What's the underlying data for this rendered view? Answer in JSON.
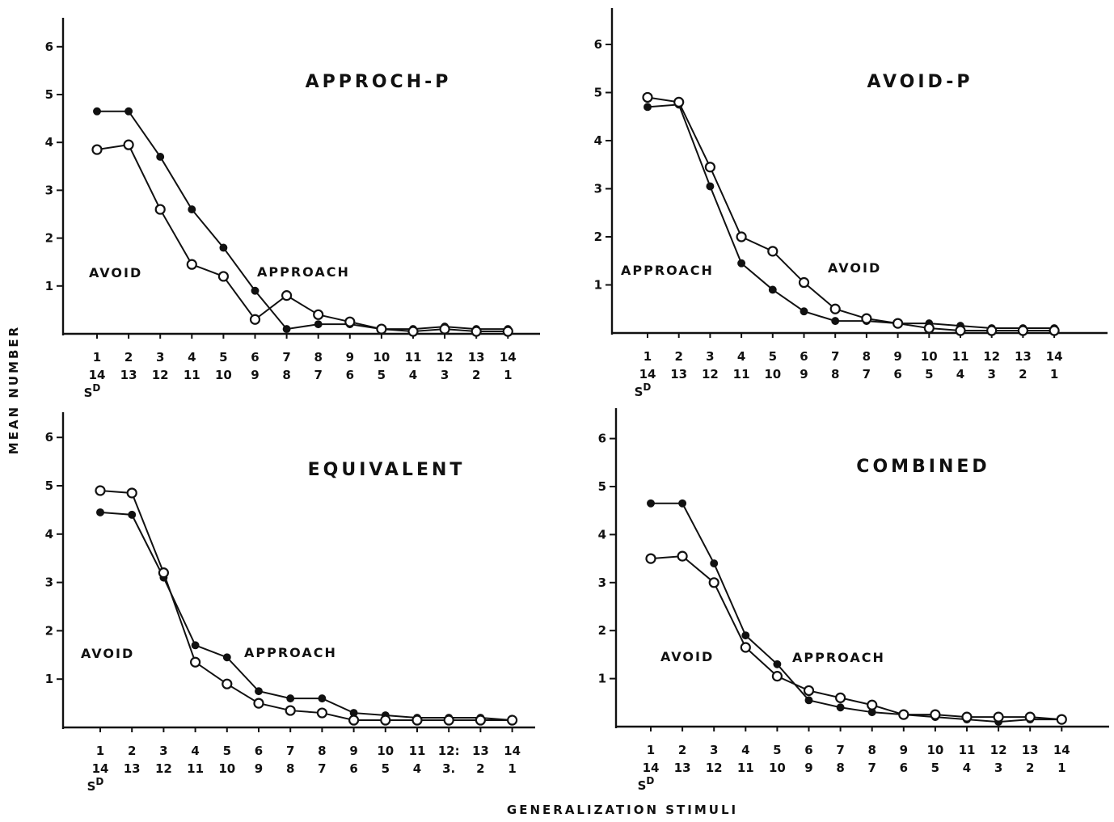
{
  "ylabel": "MEAN NUMBER",
  "xlabel": "GENERALIZATION STIMULI",
  "chart_data": [
    {
      "type": "line",
      "title": "APPROCH-P",
      "annotations": [
        "AVOID",
        "APPROACH"
      ],
      "x": [
        1,
        2,
        3,
        4,
        5,
        6,
        7,
        8,
        9,
        10,
        11,
        12,
        13,
        14
      ],
      "x_tick_row1": [
        "1",
        "2",
        "3",
        "4",
        "5",
        "6",
        "7",
        "8",
        "9",
        "10",
        "11",
        "12",
        "13",
        "14"
      ],
      "x_tick_row2": [
        "14",
        "13",
        "12",
        "11",
        "10",
        "9",
        "8",
        "7",
        "6",
        "5",
        "4",
        "3",
        "2",
        "1"
      ],
      "sd_label": "SD",
      "y_ticks": [
        "1",
        "2",
        "3",
        "4",
        "5",
        "6"
      ],
      "ylim": [
        0,
        6.5
      ],
      "series": [
        {
          "marker": "filled",
          "values": [
            4.65,
            4.65,
            3.7,
            2.6,
            1.8,
            0.9,
            0.1,
            0.2,
            0.2,
            0.1,
            0.1,
            0.15,
            0.1,
            0.1
          ]
        },
        {
          "marker": "open",
          "values": [
            3.85,
            3.95,
            2.6,
            1.45,
            1.2,
            0.3,
            0.8,
            0.4,
            0.25,
            0.1,
            0.05,
            0.1,
            0.05,
            0.05
          ]
        }
      ]
    },
    {
      "type": "line",
      "title": "AVOID-P",
      "annotations": [
        "APPROACH",
        "AVOID"
      ],
      "x": [
        1,
        2,
        3,
        4,
        5,
        6,
        7,
        8,
        9,
        10,
        11,
        12,
        13,
        14
      ],
      "x_tick_row1": [
        "1",
        "2",
        "3",
        "4",
        "5",
        "6",
        "7",
        "8",
        "9",
        "10",
        "11",
        "12",
        "13",
        "14"
      ],
      "x_tick_row2": [
        "14",
        "13",
        "12",
        "11",
        "10",
        "9",
        "8",
        "7",
        "6",
        "5",
        "4",
        "3",
        "2",
        "1"
      ],
      "sd_label": "SD",
      "y_ticks": [
        "1",
        "2",
        "3",
        "4",
        "5",
        "6"
      ],
      "ylim": [
        0,
        6.5
      ],
      "series": [
        {
          "marker": "filled",
          "values": [
            4.7,
            4.75,
            3.05,
            1.45,
            0.9,
            0.45,
            0.25,
            0.25,
            0.2,
            0.2,
            0.15,
            0.1,
            0.1,
            0.1
          ]
        },
        {
          "marker": "open",
          "values": [
            4.9,
            4.8,
            3.45,
            2.0,
            1.7,
            1.05,
            0.5,
            0.3,
            0.2,
            0.1,
            0.05,
            0.05,
            0.05,
            0.05
          ]
        }
      ]
    },
    {
      "type": "line",
      "title": "EQUIVALENT",
      "annotations": [
        "AVOID",
        "APPROACH"
      ],
      "x": [
        1,
        2,
        3,
        4,
        5,
        6,
        7,
        8,
        9,
        10,
        11,
        12,
        13,
        14
      ],
      "x_tick_row1": [
        "1",
        "2",
        "3",
        "4",
        "5",
        "6",
        "7",
        "8",
        "9",
        "10",
        "11",
        "12:",
        "13",
        "14"
      ],
      "x_tick_row2": [
        "14",
        "13",
        "12",
        "11",
        "10",
        "9",
        "8",
        "7",
        "6",
        "5",
        "4",
        "3.",
        "2",
        "1"
      ],
      "sd_label": "SD",
      "y_ticks": [
        "1",
        "2",
        "3",
        "4",
        "5",
        "6"
      ],
      "ylim": [
        0,
        6.5
      ],
      "series": [
        {
          "marker": "filled",
          "values": [
            4.45,
            4.4,
            3.1,
            1.7,
            1.45,
            0.75,
            0.6,
            0.6,
            0.3,
            0.25,
            0.2,
            0.2,
            0.2,
            0.15
          ]
        },
        {
          "marker": "open",
          "values": [
            4.9,
            4.85,
            3.2,
            1.35,
            0.9,
            0.5,
            0.35,
            0.3,
            0.15,
            0.15,
            0.15,
            0.15,
            0.15,
            0.15
          ]
        }
      ]
    },
    {
      "type": "line",
      "title": "COMBINED",
      "annotations": [
        "AVOID",
        "APPROACH"
      ],
      "x": [
        1,
        2,
        3,
        4,
        5,
        6,
        7,
        8,
        9,
        10,
        11,
        12,
        13,
        14
      ],
      "x_tick_row1": [
        "1",
        "2",
        "3",
        "4",
        "5",
        "6",
        "7",
        "8",
        "9",
        "10",
        "11",
        "12",
        "13",
        "14"
      ],
      "x_tick_row2": [
        "14",
        "13",
        "12",
        "11",
        "10",
        "9",
        "8",
        "7",
        "6",
        "5",
        "4",
        "3",
        "2",
        "1"
      ],
      "sd_label": "SD",
      "y_ticks": [
        "1",
        "2",
        "3",
        "4",
        "5",
        "6"
      ],
      "ylim": [
        0,
        6.5
      ],
      "series": [
        {
          "marker": "filled",
          "values": [
            4.65,
            4.65,
            3.4,
            1.9,
            1.3,
            0.55,
            0.4,
            0.3,
            0.25,
            0.2,
            0.15,
            0.1,
            0.15,
            0.15
          ]
        },
        {
          "marker": "open",
          "values": [
            3.5,
            3.55,
            3.0,
            1.65,
            1.05,
            0.75,
            0.6,
            0.45,
            0.25,
            0.25,
            0.2,
            0.2,
            0.2,
            0.15
          ]
        }
      ]
    }
  ]
}
